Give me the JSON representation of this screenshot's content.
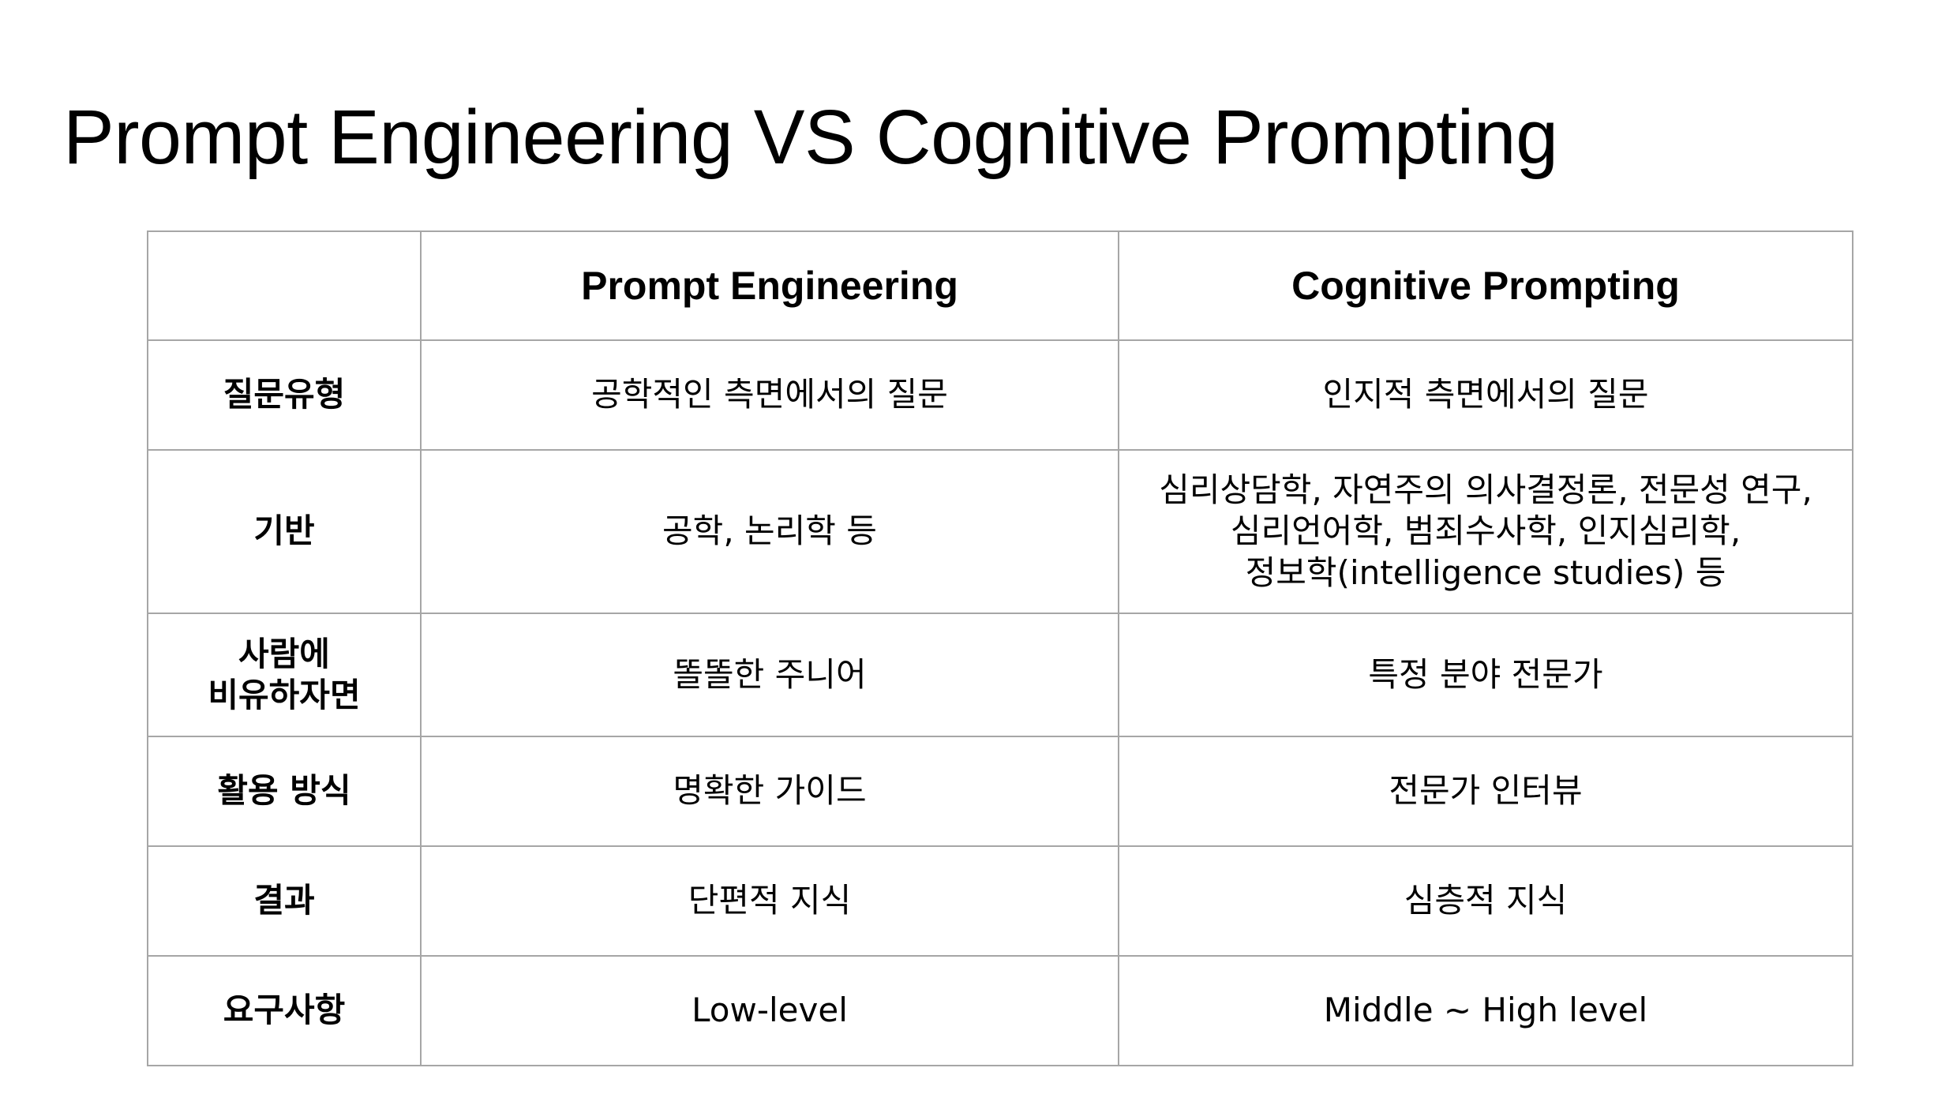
{
  "slide": {
    "title": "Prompt Engineering VS Cognitive Prompting"
  },
  "table": {
    "headers": [
      "",
      "Prompt Engineering",
      "Cognitive Prompting"
    ],
    "rows": [
      {
        "label": "질문유형",
        "prompt_engineering": "공학적인 측면에서의 질문",
        "cognitive_prompting": "인지적 측면에서의 질문"
      },
      {
        "label": "기반",
        "prompt_engineering": "공학, 논리학 등",
        "cognitive_prompting_lines": [
          "심리상담학, 자연주의 의사결정론, 전문성 연구,",
          "심리언어학, 범죄수사학, 인지심리학,",
          "정보학(intelligence studies) 등"
        ]
      },
      {
        "label_lines": [
          "사람에",
          "비유하자면"
        ],
        "prompt_engineering": "똘똘한 주니어",
        "cognitive_prompting": "특정 분야 전문가"
      },
      {
        "label": "활용 방식",
        "prompt_engineering": "명확한 가이드",
        "cognitive_prompting": "전문가 인터뷰"
      },
      {
        "label": "결과",
        "prompt_engineering": "단편적 지식",
        "cognitive_prompting": "심층적 지식"
      },
      {
        "label": "요구사항",
        "prompt_engineering": "Low-level",
        "cognitive_prompting": "Middle ~ High level"
      }
    ]
  }
}
